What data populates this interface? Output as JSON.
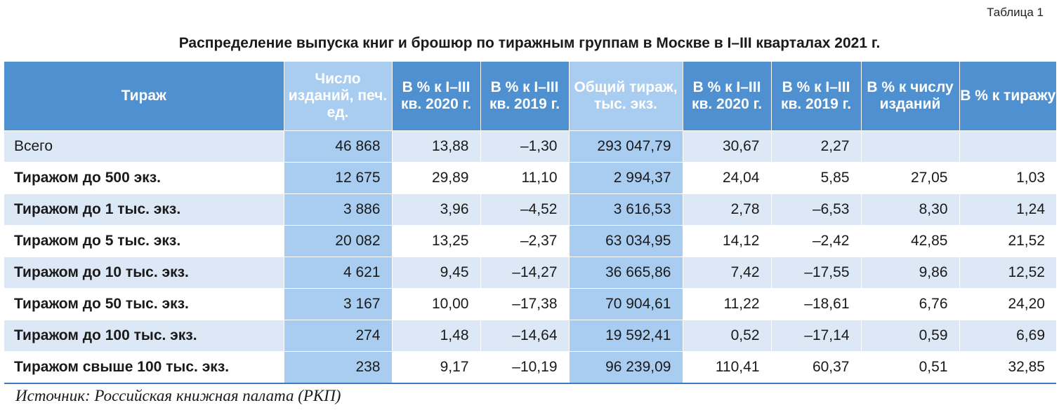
{
  "table_label": "Таблица 1",
  "title": "Распределение выпуска книг и брошюр по тиражным группам в Москве в I–III кварталах 2021 г.",
  "headers": [
    "Тираж",
    "Число изданий, печ. ед.",
    "В % к I–III кв. 2020 г.",
    "В % к I–III кв. 2019 г.",
    "Общий тираж, тыс. экз.",
    "В % к I–III кв. 2020 г.",
    "В % к I–III кв. 2019 г.",
    "В % к числу изданий",
    "В % к тиражу"
  ],
  "rows": [
    [
      "Всего",
      "46 868",
      "13,88",
      "–1,30",
      "293 047,79",
      "30,67",
      "2,27",
      "",
      ""
    ],
    [
      "Тиражом до 500 экз.",
      "12 675",
      "29,89",
      "11,10",
      "2 994,37",
      "24,04",
      "5,85",
      "27,05",
      "1,03"
    ],
    [
      "Тиражом до 1 тыс. экз.",
      "3 886",
      "3,96",
      "–4,52",
      "3 616,53",
      "2,78",
      "–6,53",
      "8,30",
      "1,24"
    ],
    [
      "Тиражом до 5 тыс. экз.",
      "20 082",
      "13,25",
      "–2,37",
      "63 034,95",
      "14,12",
      "–2,42",
      "42,85",
      "21,52"
    ],
    [
      "Тиражом до 10 тыс. экз.",
      "4 621",
      "9,45",
      "–14,27",
      "36 665,86",
      "7,42",
      "–17,55",
      "9,86",
      "12,52"
    ],
    [
      "Тиражом до 50 тыс. экз.",
      "3 167",
      "10,00",
      "–17,38",
      "70 904,61",
      "11,22",
      "–18,61",
      "6,76",
      "24,20"
    ],
    [
      "Тиражом до 100 тыс. экз.",
      "274",
      "1,48",
      "–14,64",
      "19 592,41",
      "0,52",
      "–17,14",
      "0,59",
      "6,69"
    ],
    [
      "Тиражом свыше 100 тыс. экз.",
      "238",
      "9,17",
      "–10,19",
      "96 239,09",
      "110,41",
      "60,37",
      "0,51",
      "32,85"
    ]
  ],
  "source": "Источник: Российская книжная палата (РКП)",
  "colors": {
    "header_blue": "#4f90d0",
    "highlight_blue": "#a9cdf1",
    "row_shade": "#dce8f6"
  }
}
